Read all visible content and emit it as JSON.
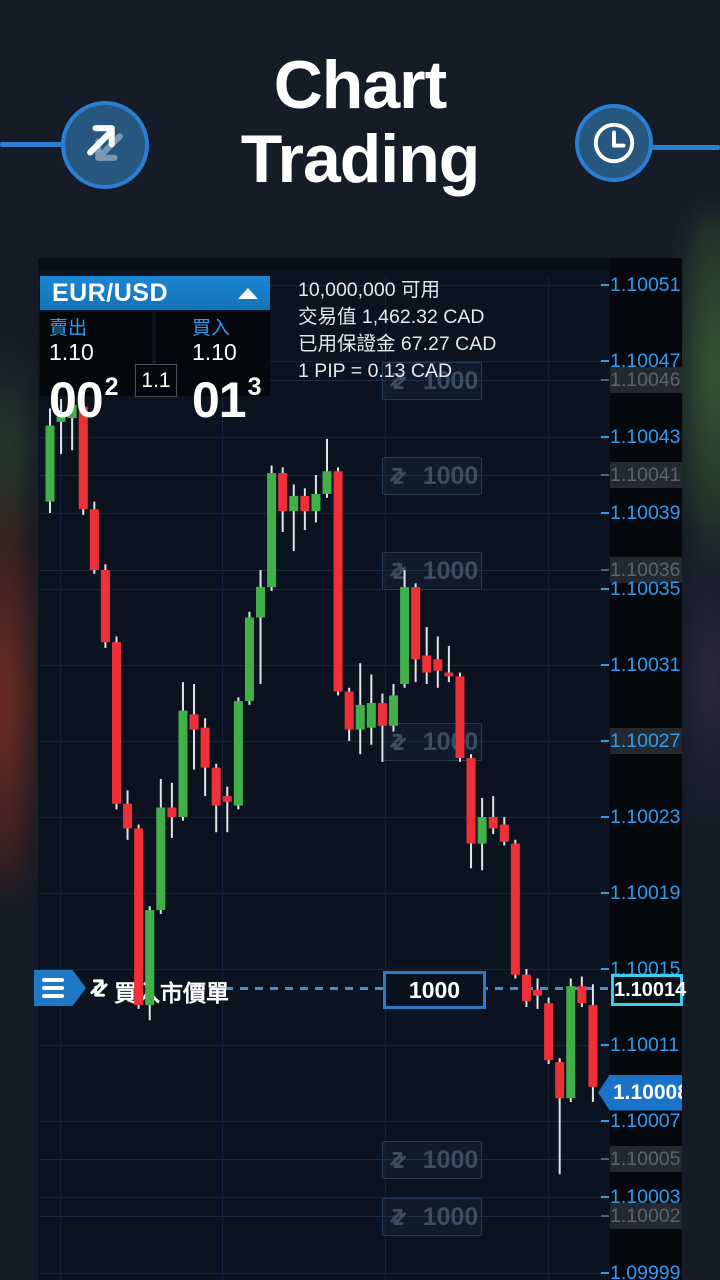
{
  "page": {
    "title_line1": "Chart",
    "title_line2": "Trading"
  },
  "icons": {
    "left_hub": "trade-arrows-icon",
    "right_hub": "clock-icon",
    "quote_collapse": "triangle-up-icon",
    "order_menu": "hamburger-icon"
  },
  "instrument": {
    "symbol": "EUR/USD",
    "sell_label": "賣出",
    "buy_label": "買入",
    "sell_price_prefix": "1.10",
    "sell_price_big": "00",
    "sell_price_sup": "2",
    "buy_price_prefix": "1.10",
    "buy_price_big": "01",
    "buy_price_sup": "3",
    "spread": "1.1"
  },
  "account_info": {
    "line1": "10,000,000 可用",
    "line2": "交易值 1,462.32 CAD",
    "line3": "已用保證金 67.27 CAD",
    "line4": "1 PIP = 0.13 CAD"
  },
  "order": {
    "label": "買入市價單",
    "quantity": "1000",
    "price": "1.10014",
    "price_pips": 14
  },
  "current_price": {
    "label": "1.10008",
    "pips": 8.5
  },
  "chart_data": {
    "type": "candlestick",
    "symbol": "EUR/USD",
    "price_base": 1.1,
    "pip_size": 1e-05,
    "y_axis": {
      "tick_pips": [
        51,
        47,
        43,
        39,
        35,
        31,
        27,
        23,
        19,
        15,
        11,
        7,
        3,
        -1
      ],
      "ghost_tick_pips": [
        46,
        41,
        36,
        5,
        2
      ],
      "highlight_tick_pips": [
        27
      ],
      "range_note": "labels rendered as price_base + pips*pip_size, e.g. 1.10051 .. 1.09999"
    },
    "ghost_orders": [
      {
        "quantity": "1000",
        "pips": 46
      },
      {
        "quantity": "1000",
        "pips": 41
      },
      {
        "quantity": "1000",
        "pips": 36
      },
      {
        "quantity": "1000",
        "pips": 27
      },
      {
        "quantity": "1000",
        "pips": 5
      },
      {
        "quantity": "1000",
        "pips": 2
      }
    ],
    "order_line": {
      "side": "buy",
      "label": "買入市價單",
      "quantity": "1000",
      "pips": 14,
      "price": "1.10014"
    },
    "last_price": {
      "label": "1.10008",
      "pips": 8.5
    },
    "candles_format": [
      "open",
      "high",
      "low",
      "close"
    ],
    "candles_unit": "pips above 1.10000",
    "candles": [
      [
        39.6,
        44.5,
        39.0,
        43.6
      ],
      [
        43.8,
        45.0,
        42.1,
        44.2
      ],
      [
        44.0,
        46.0,
        42.3,
        44.7
      ],
      [
        44.6,
        45.0,
        38.9,
        39.2
      ],
      [
        39.2,
        39.6,
        35.8,
        36.0
      ],
      [
        36.0,
        36.3,
        31.9,
        32.2
      ],
      [
        32.2,
        32.5,
        23.4,
        23.7
      ],
      [
        23.7,
        24.4,
        21.8,
        22.4
      ],
      [
        22.4,
        22.6,
        12.9,
        13.1
      ],
      [
        13.1,
        18.3,
        12.3,
        18.1
      ],
      [
        18.1,
        25.0,
        17.9,
        23.5
      ],
      [
        23.5,
        24.8,
        21.9,
        23.0
      ],
      [
        23.0,
        30.1,
        22.8,
        28.6
      ],
      [
        28.4,
        30.0,
        25.5,
        27.6
      ],
      [
        27.7,
        28.2,
        24.1,
        25.6
      ],
      [
        25.6,
        25.8,
        22.2,
        23.6
      ],
      [
        24.1,
        24.6,
        22.2,
        23.8
      ],
      [
        23.6,
        29.3,
        23.4,
        29.1
      ],
      [
        29.1,
        33.8,
        28.9,
        33.5
      ],
      [
        33.5,
        36.0,
        30.0,
        35.1
      ],
      [
        35.1,
        41.5,
        34.9,
        41.1
      ],
      [
        41.1,
        41.4,
        38.0,
        39.1
      ],
      [
        39.1,
        40.5,
        37.0,
        39.9
      ],
      [
        39.9,
        40.3,
        38.1,
        39.1
      ],
      [
        39.1,
        41.0,
        38.5,
        40.0
      ],
      [
        40.0,
        42.9,
        39.8,
        41.2
      ],
      [
        41.2,
        41.4,
        29.4,
        29.6
      ],
      [
        29.6,
        29.8,
        27.0,
        27.6
      ],
      [
        27.6,
        31.1,
        26.3,
        28.9
      ],
      [
        27.7,
        30.5,
        26.8,
        29.0
      ],
      [
        29.0,
        29.5,
        25.9,
        27.8
      ],
      [
        27.8,
        30.0,
        27.5,
        29.4
      ],
      [
        30.0,
        36.0,
        29.8,
        35.1
      ],
      [
        35.1,
        35.3,
        30.1,
        31.3
      ],
      [
        31.5,
        33.0,
        30.0,
        30.6
      ],
      [
        31.3,
        32.5,
        29.8,
        30.7
      ],
      [
        30.6,
        32.0,
        30.1,
        30.4
      ],
      [
        30.4,
        30.6,
        25.9,
        26.1
      ],
      [
        26.1,
        26.3,
        20.3,
        21.6
      ],
      [
        21.6,
        24.0,
        20.2,
        23.0
      ],
      [
        23.0,
        24.1,
        22.1,
        22.4
      ],
      [
        22.6,
        23.0,
        21.5,
        21.7
      ],
      [
        21.6,
        21.8,
        14.5,
        14.7
      ],
      [
        14.7,
        15.0,
        13.0,
        13.3
      ],
      [
        13.9,
        14.5,
        12.9,
        13.6
      ],
      [
        13.2,
        13.5,
        10.0,
        10.2
      ],
      [
        10.1,
        10.3,
        4.2,
        8.2
      ],
      [
        8.2,
        14.5,
        8.0,
        14.1
      ],
      [
        14.1,
        14.6,
        13.0,
        13.2
      ],
      [
        13.1,
        14.2,
        8.0,
        8.8
      ]
    ],
    "colors": {
      "up": "#41b049",
      "down": "#ef3038",
      "wick": "#dfe4e8",
      "axis_text": "#2e9df2",
      "accent_blue": "#1973c8",
      "order_line_blue": "#3e8fd8",
      "order_box_border": "#2a7cc9",
      "order_price_border": "#3ecbf0",
      "ghost_text": "#3d4d61"
    }
  }
}
